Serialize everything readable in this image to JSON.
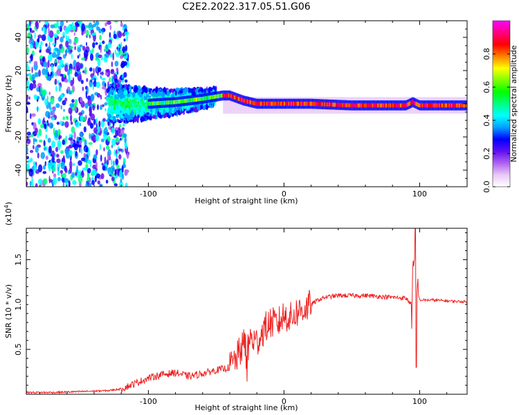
{
  "title": "C2E2.2022.317.05.51.G06",
  "chart_data": [
    {
      "type": "heatmap",
      "name": "spectrogram",
      "xlabel": "Height of straight line (km)",
      "ylabel": "Frequency (Hz)",
      "xlim": [
        -190,
        135
      ],
      "ylim": [
        -50,
        50
      ],
      "x_ticks": [
        -100,
        0,
        100
      ],
      "y_ticks": [
        -40,
        -20,
        0,
        20,
        40
      ],
      "ridge": {
        "x": [
          -190,
          -150,
          -120,
          -100,
          -80,
          -60,
          -45,
          -40,
          -30,
          -20,
          -10,
          0,
          10,
          20,
          50,
          80,
          90,
          95,
          100,
          135
        ],
        "freq": [
          0,
          0,
          0,
          0,
          1,
          3,
          5,
          5,
          2,
          0,
          0,
          0,
          0,
          0,
          -1,
          -1,
          -1,
          1,
          -1,
          -1
        ]
      },
      "colorbar": {
        "label": "Normalized spectral amplitude",
        "range": [
          0,
          1
        ],
        "ticks": [
          "0.0",
          "0.2",
          "0.4",
          "0.6",
          "0.8"
        ],
        "colors": [
          "#ffffff",
          "#e8c8f8",
          "#b060f0",
          "#6010f0",
          "#0000ff",
          "#00a0ff",
          "#00ffff",
          "#00ff80",
          "#00ff00",
          "#80ff00",
          "#ffff00",
          "#ff8000",
          "#ff0000",
          "#ff0080",
          "#ff00ff"
        ]
      }
    },
    {
      "type": "line",
      "name": "snr",
      "xlabel": "Height of straight line (km)",
      "ylabel": "SNR (10 * v/v)",
      "scale_label": "(x10",
      "scale_exp": "4",
      "scale_close": ")",
      "xlim": [
        -190,
        135
      ],
      "ylim": [
        0,
        1.85
      ],
      "x_ticks": [
        -100,
        0,
        100
      ],
      "y_ticks": [
        "0.5",
        "1.0",
        "1.5"
      ],
      "color": "#ee2222",
      "series": [
        {
          "name": "SNR",
          "x": [
            -190,
            -170,
            -150,
            -130,
            -120,
            -110,
            -100,
            -90,
            -80,
            -70,
            -60,
            -50,
            -45,
            -40,
            -35,
            -30,
            -25,
            -20,
            -15,
            -10,
            -5,
            0,
            5,
            10,
            15,
            20,
            25,
            30,
            40,
            50,
            60,
            70,
            80,
            90,
            94,
            96,
            97,
            98,
            100,
            110,
            120,
            135
          ],
          "y": [
            0.02,
            0.02,
            0.03,
            0.04,
            0.06,
            0.12,
            0.18,
            0.22,
            0.24,
            0.2,
            0.23,
            0.27,
            0.28,
            0.3,
            0.4,
            0.55,
            0.62,
            0.58,
            0.72,
            0.8,
            0.78,
            0.88,
            0.85,
            0.92,
            0.95,
            1.0,
            1.05,
            1.08,
            1.1,
            1.1,
            1.1,
            1.09,
            1.08,
            1.07,
            1.0,
            1.45,
            0.6,
            1.2,
            1.05,
            1.05,
            1.04,
            1.03
          ]
        }
      ]
    }
  ]
}
